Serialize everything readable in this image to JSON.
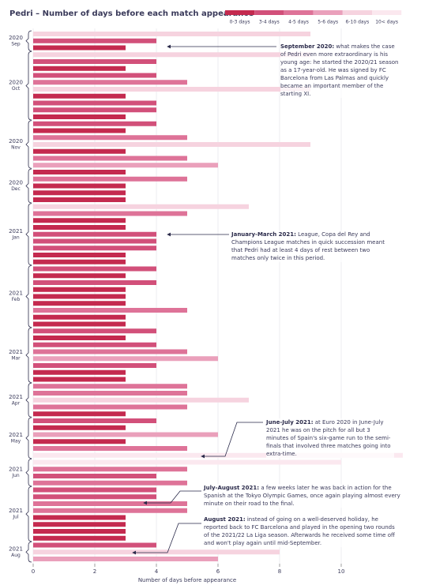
{
  "chart_data": {
    "type": "bar",
    "title": "Pedri – Number of days before each match appearance",
    "x_label": "Number of days before appearance",
    "xlim": [
      0,
      10
    ],
    "xticks": [
      0,
      2,
      4,
      6,
      8,
      10
    ],
    "grid": true,
    "legend": [
      {
        "label": "0-3 days",
        "color": "#c42a4f"
      },
      {
        "label": "3-4 days",
        "color": "#d2507a"
      },
      {
        "label": "4-5 days",
        "color": "#de7398"
      },
      {
        "label": "5-6 days",
        "color": "#eaa0bb"
      },
      {
        "label": "6-10 days",
        "color": "#f6d3df"
      },
      {
        "label": "10< days",
        "color": "#fbe8ef"
      }
    ],
    "groups": [
      {
        "year": "2020",
        "month": "Sep",
        "values": [
          9,
          4,
          3
        ],
        "colors": [
          "#f6d3df",
          "#d2507a",
          "#c42a4f"
        ]
      },
      {
        "year": "2020",
        "month": "Oct",
        "values": [
          9,
          4,
          3,
          4,
          5,
          9,
          3,
          4,
          4,
          3
        ],
        "colors": [
          "#f6d3df",
          "#d2507a",
          "#c42a4f",
          "#d2507a",
          "#de7398",
          "#f6d3df",
          "#c42a4f",
          "#d2507a",
          "#d2507a",
          "#c42a4f"
        ]
      },
      {
        "year": "2020",
        "month": "Nov",
        "values": [
          4,
          3,
          5,
          9,
          3,
          5,
          6
        ],
        "colors": [
          "#d2507a",
          "#c42a4f",
          "#de7398",
          "#f6d3df",
          "#c42a4f",
          "#de7398",
          "#eaa0bb"
        ]
      },
      {
        "year": "2020",
        "month": "Dec",
        "values": [
          3,
          5,
          3,
          3,
          3
        ],
        "colors": [
          "#c42a4f",
          "#de7398",
          "#c42a4f",
          "#c42a4f",
          "#c42a4f"
        ]
      },
      {
        "year": "2021",
        "month": "Jan",
        "values": [
          7,
          5,
          3,
          3,
          4,
          4,
          4,
          3,
          3
        ],
        "colors": [
          "#f6d3df",
          "#de7398",
          "#c42a4f",
          "#c42a4f",
          "#d2507a",
          "#d2507a",
          "#d2507a",
          "#c42a4f",
          "#c42a4f"
        ]
      },
      {
        "year": "2021",
        "month": "Feb",
        "values": [
          4,
          3,
          4,
          3,
          3,
          3,
          5,
          3,
          3
        ],
        "colors": [
          "#d2507a",
          "#c42a4f",
          "#d2507a",
          "#c42a4f",
          "#c42a4f",
          "#c42a4f",
          "#de7398",
          "#c42a4f",
          "#c42a4f"
        ]
      },
      {
        "year": "2021",
        "month": "Mar",
        "values": [
          4,
          3,
          4,
          5,
          6,
          4,
          3,
          3
        ],
        "colors": [
          "#d2507a",
          "#c42a4f",
          "#d2507a",
          "#de7398",
          "#eaa0bb",
          "#d2507a",
          "#c42a4f",
          "#c42a4f"
        ]
      },
      {
        "year": "2021",
        "month": "Apr",
        "values": [
          5,
          5,
          7,
          5,
          3
        ],
        "colors": [
          "#de7398",
          "#de7398",
          "#f6d3df",
          "#de7398",
          "#c42a4f"
        ]
      },
      {
        "year": "2021",
        "month": "May",
        "values": [
          4,
          3,
          6,
          3,
          5,
          12
        ],
        "colors": [
          "#d2507a",
          "#c42a4f",
          "#eaa0bb",
          "#c42a4f",
          "#de7398",
          "#fbe8ef"
        ]
      },
      {
        "year": "2021",
        "month": "Jun",
        "values": [
          10,
          5,
          4,
          5
        ],
        "colors": [
          "#fbe8ef",
          "#de7398",
          "#d2507a",
          "#de7398"
        ]
      },
      {
        "year": "2021",
        "month": "Jul",
        "values": [
          4,
          4,
          5,
          5,
          3,
          3,
          3,
          3
        ],
        "colors": [
          "#d2507a",
          "#d2507a",
          "#de7398",
          "#de7398",
          "#c42a4f",
          "#c42a4f",
          "#c42a4f",
          "#c42a4f"
        ]
      },
      {
        "year": "2021",
        "month": "Aug",
        "values": [
          4,
          8,
          6
        ],
        "colors": [
          "#d2507a",
          "#f6d3df",
          "#eaa0bb"
        ]
      }
    ],
    "annotations": [
      {
        "title": "September 2020:",
        "text": " what makes the case of Pedri even more extraordinary is his young age: he started the 2020/21 season as a 17-year-old. He was signed by FC Barcelona from Las Palmas and quickly became an important member of the starting XI."
      },
      {
        "title": "January-March 2021:",
        "text": " League, Copa del Rey and Champions League matches in quick succession meant that Pedri had at least 4 days of rest between two matches only twice in this period."
      },
      {
        "title": "June-July 2021:",
        "text": " at Euro 2020 in June-July 2021 he was on the pitch for all but 3 minutes of Spain's six-game run to the semi-finals that involved three matches going into extra-time."
      },
      {
        "title": "July-August 2021:",
        "text": " a few weeks later he was back in action for the Spanish at the Tokyo Olympic Games, once again playing almost every minute on their road to the final."
      },
      {
        "title": "August 2021:",
        "text": " instead of going on a well-deserved holiday, he reported back to FC Barcelona and played in the opening two rounds of the 2021/22 La Liga season. Afterwards he received some time off and won't play again until mid-September."
      }
    ]
  }
}
